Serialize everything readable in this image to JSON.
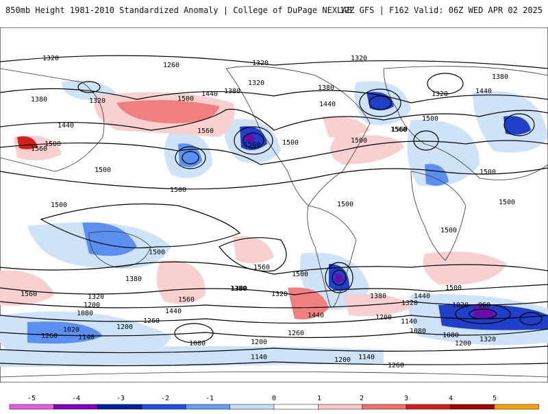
{
  "header": {
    "title": "850mb Height 1981-2010 Standardized Anomaly | College of DuPage NEXLAB",
    "run": "12Z GFS | F162 Valid: 06Z WED APR 02 2025"
  },
  "map": {
    "contour_labels": [
      "1320",
      "1260",
      "1320",
      "1320",
      "1380",
      "1320",
      "1440",
      "1380",
      "1320",
      "1380",
      "1440",
      "1500",
      "1440",
      "1560",
      "1500",
      "1560",
      "1380",
      "1320",
      "1440",
      "1560",
      "1500",
      "1500",
      "1500",
      "1500",
      "1500",
      "1500",
      "1500",
      "1560",
      "1380",
      "1560",
      "1380",
      "1320",
      "1380",
      "1560",
      "1500",
      "1380",
      "1320",
      "1440",
      "1500",
      "1440",
      "1320",
      "1200",
      "1080",
      "1260",
      "1200",
      "1020",
      "1140",
      "1080",
      "1260",
      "1200",
      "1140",
      "1200",
      "1140",
      "1260",
      "1020",
      "960",
      "1140",
      "1080",
      "1080",
      "1200",
      "1320",
      "1500",
      "1560",
      "1500",
      "1560",
      "1500",
      "1500",
      "1440",
      "1260",
      "1200"
    ],
    "colors": {
      "ocean_land": "#ffffff",
      "neg_light": "#cfe3f8",
      "neg_mid": "#5b8ff0",
      "neg_dark": "#1f3fc8",
      "neg_extreme": "#6a0dad",
      "pos_light": "#f8d0d0",
      "pos_mid": "#f08080",
      "pos_dark": "#d02020"
    }
  },
  "colorbar": {
    "ticks": [
      "-5",
      "-4",
      "-3",
      "-2",
      "-1",
      "0",
      "1",
      "2",
      "3",
      "4",
      "5"
    ],
    "colors": [
      "#e060e0",
      "#8000c0",
      "#0020a0",
      "#1f50e0",
      "#6a9cf0",
      "#c8dcf8",
      "#ffffff",
      "#f8c8c8",
      "#f07070",
      "#d02020",
      "#a00000",
      "#ffa000"
    ]
  }
}
